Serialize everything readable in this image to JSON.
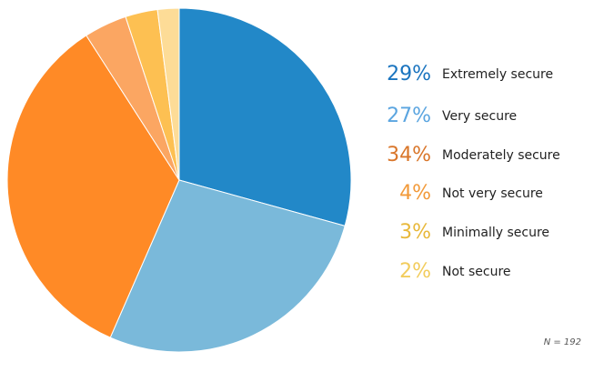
{
  "chart_data": {
    "type": "pie",
    "slices": [
      {
        "label": "Extremely secure",
        "percent": "29%",
        "value": 29,
        "color": "#2288c8",
        "legend_color": "#1a74bf"
      },
      {
        "label": "Very secure",
        "percent": "27%",
        "value": 27,
        "color": "#7ab9da",
        "legend_color": "#5ba5e0"
      },
      {
        "label": "Moderately secure",
        "percent": "34%",
        "value": 34,
        "color": "#ff8a26",
        "legend_color": "#d9762a"
      },
      {
        "label": "Not very secure",
        "percent": "4%",
        "value": 4,
        "color": "#fba662",
        "legend_color": "#f29a3a"
      },
      {
        "label": "Minimally secure",
        "percent": "3%",
        "value": 3,
        "color": "#fdc052",
        "legend_color": "#e8b83a"
      },
      {
        "label": "Not secure",
        "percent": "2%",
        "value": 2,
        "color": "#fddc97",
        "legend_color": "#f2cc5c"
      }
    ],
    "start_position": "12 o'clock",
    "direction": "clockwise",
    "legend_placement": "right",
    "note": "N = 192"
  }
}
